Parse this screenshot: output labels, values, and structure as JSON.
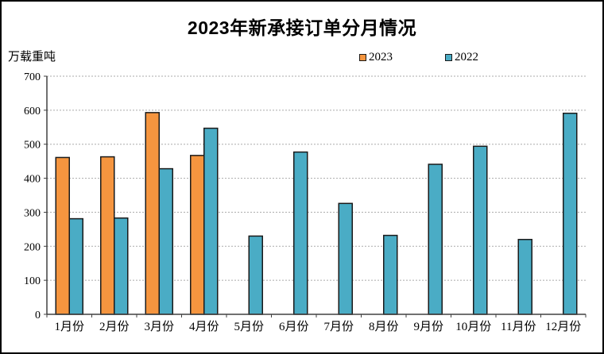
{
  "chart_data": {
    "type": "bar",
    "title": "2023年新承接订单分月情况",
    "unit_label": "万载重吨",
    "categories": [
      "1月份",
      "2月份",
      "3月份",
      "4月份",
      "5月份",
      "6月份",
      "7月份",
      "8月份",
      "9月份",
      "10月份",
      "11月份",
      "12月份"
    ],
    "series": [
      {
        "name": "2023",
        "color": "#F5953F",
        "values": [
          461,
          463,
          593,
          467,
          null,
          null,
          null,
          null,
          null,
          null,
          null,
          null
        ]
      },
      {
        "name": "2022",
        "color": "#4AACC5",
        "values": [
          281,
          283,
          428,
          547,
          230,
          477,
          326,
          232,
          441,
          494,
          220,
          591
        ]
      }
    ],
    "ylim": [
      0,
      700
    ],
    "yticks": [
      0,
      100,
      200,
      300,
      400,
      500,
      600,
      700
    ],
    "grid": "horizontal-dotted",
    "legend_position": "top-right"
  },
  "colors": {
    "background": "#ffffff",
    "frame_border": "#000000",
    "axis": "#404040",
    "gridline": "#ababab",
    "bar_border": "#1a1a1a",
    "text": "#000000"
  }
}
